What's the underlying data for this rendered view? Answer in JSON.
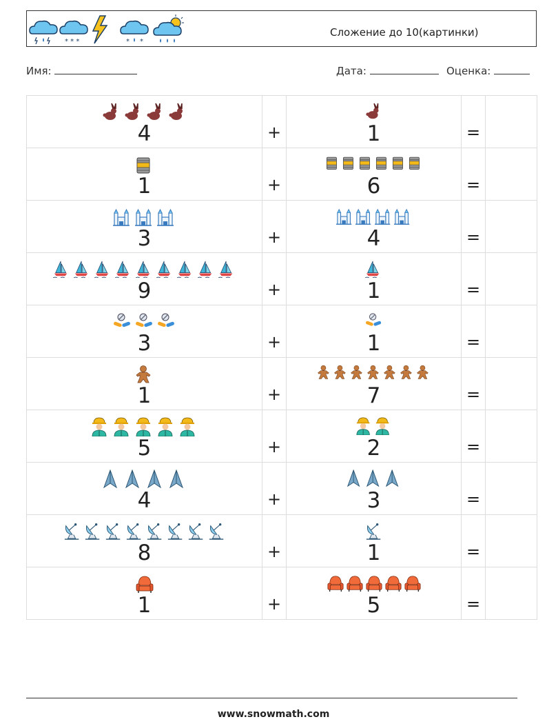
{
  "header": {
    "title": "Сложение до 10(картинки)",
    "weather_icons": [
      "rain-cloud-icon",
      "snow-cloud-icon",
      "lightning-icon",
      "snow-cloud-icon",
      "sun-rain-cloud-icon"
    ]
  },
  "meta": {
    "name_label": "Имя:",
    "date_label": "Дата:",
    "grade_label": "Оценка:"
  },
  "operators": {
    "plus": "+",
    "equals": "="
  },
  "rows": [
    {
      "a": {
        "count": 4,
        "label": "4",
        "icon": "rabbit-icon"
      },
      "b": {
        "count": 1,
        "label": "1",
        "icon": "rabbit-icon"
      }
    },
    {
      "a": {
        "count": 1,
        "label": "1",
        "icon": "oil-barrel-icon"
      },
      "b": {
        "count": 6,
        "label": "6",
        "icon": "oil-barrel-icon"
      }
    },
    {
      "a": {
        "count": 3,
        "label": "3",
        "icon": "castle-icon"
      },
      "b": {
        "count": 4,
        "label": "4",
        "icon": "castle-icon"
      }
    },
    {
      "a": {
        "count": 9,
        "label": "9",
        "icon": "sailboat-icon"
      },
      "b": {
        "count": 1,
        "label": "1",
        "icon": "sailboat-icon"
      }
    },
    {
      "a": {
        "count": 3,
        "label": "3",
        "icon": "pills-icon"
      },
      "b": {
        "count": 1,
        "label": "1",
        "icon": "pills-icon"
      }
    },
    {
      "a": {
        "count": 1,
        "label": "1",
        "icon": "gingerbread-man-icon"
      },
      "b": {
        "count": 7,
        "label": "7",
        "icon": "gingerbread-man-icon"
      }
    },
    {
      "a": {
        "count": 5,
        "label": "5",
        "icon": "worker-icon"
      },
      "b": {
        "count": 2,
        "label": "2",
        "icon": "worker-icon"
      }
    },
    {
      "a": {
        "count": 4,
        "label": "4",
        "icon": "paper-plane-icon"
      },
      "b": {
        "count": 3,
        "label": "3",
        "icon": "paper-plane-icon"
      }
    },
    {
      "a": {
        "count": 8,
        "label": "8",
        "icon": "satellite-dish-icon"
      },
      "b": {
        "count": 1,
        "label": "1",
        "icon": "satellite-dish-icon"
      }
    },
    {
      "a": {
        "count": 1,
        "label": "1",
        "icon": "armchair-icon"
      },
      "b": {
        "count": 5,
        "label": "5",
        "icon": "armchair-icon"
      }
    }
  ],
  "footer": {
    "site": "www.snowmath.com"
  }
}
